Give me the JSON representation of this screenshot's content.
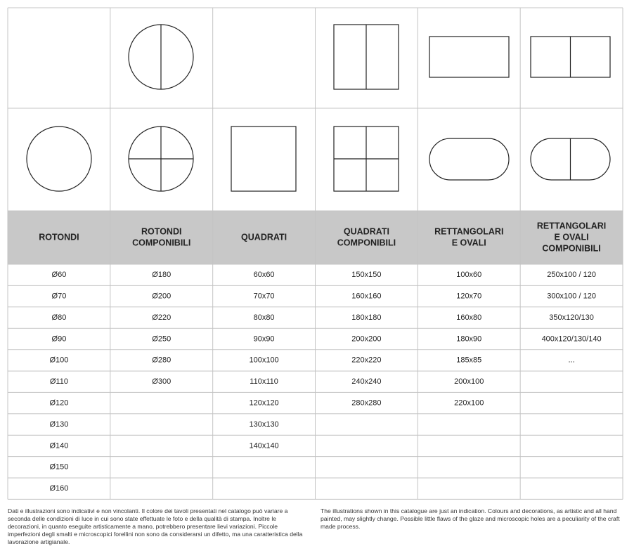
{
  "table": {
    "columns": [
      {
        "header": [
          "ROTONDI"
        ],
        "items": [
          "Ø60",
          "Ø70",
          "Ø80",
          "Ø90",
          "Ø100",
          "Ø110",
          "Ø120",
          "Ø130",
          "Ø140",
          "Ø150",
          "Ø160"
        ]
      },
      {
        "header": [
          "ROTONDI",
          "COMPONIBILI"
        ],
        "items": [
          "Ø180",
          "Ø200",
          "Ø220",
          "Ø250",
          "Ø280",
          "Ø300"
        ]
      },
      {
        "header": [
          "QUADRATI"
        ],
        "items": [
          "60x60",
          "70x70",
          "80x80",
          "90x90",
          "100x100",
          "110x110",
          "120x120",
          "130x130",
          "140x140"
        ]
      },
      {
        "header": [
          "QUADRATI",
          "COMPONIBILI"
        ],
        "items": [
          "150x150",
          "160x160",
          "180x180",
          "200x200",
          "220x220",
          "240x240",
          "280x280"
        ]
      },
      {
        "header": [
          "RETTANGOLARI",
          "E OVALI"
        ],
        "items": [
          "100x60",
          "120x70",
          "160x80",
          "180x90",
          "185x85",
          "200x100",
          "220x100"
        ]
      },
      {
        "header": [
          "RETTANGOLARI",
          "E OVALI",
          "COMPONIBILI"
        ],
        "items": [
          "250x100 / 120",
          "300x100 / 120",
          "350x120/130",
          "400x120/130/140",
          "..."
        ]
      }
    ]
  },
  "footer": {
    "italian": "Dati e illustrazioni sono indicativi e non vincolanti. Il colore dei tavoli presentati nel catalogo può variare a seconda delle condizioni di luce in cui sono state effettuate le foto e della qualità di stampa. Inoltre le decorazioni, in quanto eseguite artisticamente a mano, potrebbero presentare lievi variazioni. Piccole imperfezioni degli smalti e microscopici forellini non sono da considerarsi un difetto, ma una caratteristica della lavorazione artigianale.",
    "english": "The illustrations shown in this catalogue are just an indication. Colours and decorations, as artistic and all hand painted, may slightly change. Possible little flaws of the glaze and microscopic holes are a peculiarity of the craft made process."
  }
}
